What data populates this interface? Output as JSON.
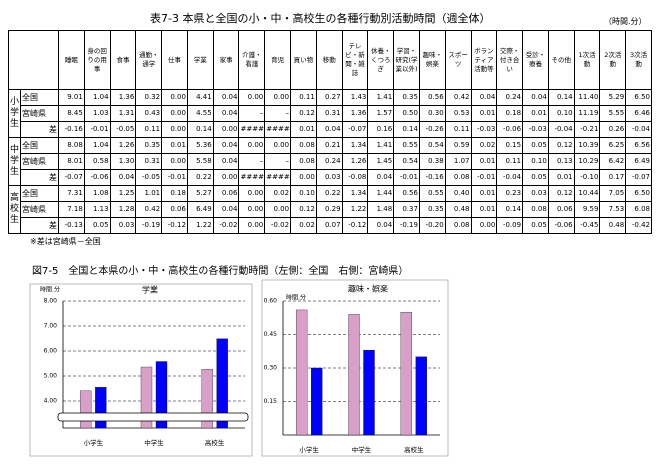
{
  "table": {
    "title": "表7-3 本県と全国の小・中・高校生の各種行動別活動時間（週全体）",
    "unit": "（時間.分）",
    "columns": [
      "睡眠",
      "身の回りの用事",
      "食事",
      "通勤・通学",
      "仕事",
      "学業",
      "家事",
      "介護・看護",
      "育児",
      "買い物",
      "移動",
      "テレビ・新聞・雑誌",
      "休養・くつろぎ",
      "学習・研究(学業以外)",
      "趣味・娯楽",
      "スポーツ",
      "ボランティア活動等",
      "交際・付き合い",
      "受診・療養",
      "その他",
      "1次活動",
      "2次活動",
      "3次活動"
    ],
    "groups": [
      {
        "label": "小学生",
        "rows": [
          {
            "label": "全国",
            "values": [
              "9.01",
              "1.04",
              "1.36",
              "0.32",
              "0.00",
              "4.41",
              "0.04",
              "0.00",
              "0.00",
              "0.11",
              "0.27",
              "1.43",
              "1.41",
              "0.35",
              "0.56",
              "0.42",
              "0.04",
              "0.24",
              "0.04",
              "0.14",
              "11.40",
              "5.29",
              "6.50"
            ]
          },
          {
            "label": "宮崎県",
            "values": [
              "8.45",
              "1.03",
              "1.31",
              "0.43",
              "0.00",
              "4.55",
              "0.04",
              "–",
              "–",
              "0.12",
              "0.31",
              "1.36",
              "1.57",
              "0.50",
              "0.30",
              "0.53",
              "0.01",
              "0.18",
              "0.01",
              "0.10",
              "11.19",
              "5.55",
              "6.46"
            ]
          },
          {
            "label": "差",
            "values": [
              "-0.16",
              "-0.01",
              "-0.05",
              "0.11",
              "0.00",
              "0.14",
              "0.00",
              "####",
              "####",
              "0.01",
              "0.04",
              "-0.07",
              "0.16",
              "0.14",
              "-0.26",
              "0.11",
              "-0.03",
              "-0.06",
              "-0.03",
              "-0.04",
              "-0.21",
              "0.26",
              "-0.04"
            ]
          }
        ]
      },
      {
        "label": "中学生",
        "rows": [
          {
            "label": "全国",
            "values": [
              "8.08",
              "1.04",
              "1.26",
              "0.35",
              "0.01",
              "5.36",
              "0.04",
              "0.00",
              "0.00",
              "0.08",
              "0.21",
              "1.34",
              "1.41",
              "0.55",
              "0.54",
              "0.59",
              "0.02",
              "0.15",
              "0.05",
              "0.12",
              "10.39",
              "6.25",
              "6.56"
            ]
          },
          {
            "label": "宮崎県",
            "values": [
              "8.01",
              "0.58",
              "1.30",
              "0.31",
              "0.00",
              "5.58",
              "0.04",
              "–",
              "–",
              "0.08",
              "0.24",
              "1.26",
              "1.45",
              "0.54",
              "0.38",
              "1.07",
              "0.01",
              "0.11",
              "0.10",
              "0.13",
              "10.29",
              "6.42",
              "6.49"
            ]
          },
          {
            "label": "差",
            "values": [
              "-0.07",
              "-0.06",
              "0.04",
              "-0.05",
              "-0.01",
              "0.22",
              "0.00",
              "####",
              "####",
              "0.00",
              "0.03",
              "-0.08",
              "0.04",
              "-0.01",
              "-0.16",
              "0.08",
              "-0.01",
              "-0.04",
              "0.05",
              "0.01",
              "-0.10",
              "0.17",
              "-0.07"
            ]
          }
        ]
      },
      {
        "label": "高校生",
        "rows": [
          {
            "label": "全国",
            "values": [
              "7.31",
              "1.08",
              "1.25",
              "1.01",
              "0.18",
              "5.27",
              "0.06",
              "0.00",
              "0.02",
              "0.10",
              "0.22",
              "1.34",
              "1.44",
              "0.56",
              "0.55",
              "0.40",
              "0.01",
              "0.23",
              "0.03",
              "0.12",
              "10.44",
              "7.05",
              "6.50"
            ]
          },
          {
            "label": "宮崎県",
            "values": [
              "7.18",
              "1.13",
              "1.28",
              "0.42",
              "0.06",
              "6.49",
              "0.04",
              "0.00",
              "0.00",
              "0.12",
              "0.29",
              "1.22",
              "1.48",
              "0.37",
              "0.35",
              "0.48",
              "0.01",
              "0.14",
              "0.08",
              "0.06",
              "9.59",
              "7.53",
              "6.08"
            ]
          },
          {
            "label": "差",
            "values": [
              "-0.13",
              "0.05",
              "0.03",
              "-0.19",
              "-0.12",
              "1.22",
              "-0.02",
              "0.00",
              "-0.02",
              "0.02",
              "0.07",
              "-0.12",
              "0.04",
              "-0.19",
              "-0.20",
              "0.08",
              "0.00",
              "-0.09",
              "0.05",
              "-0.06",
              "-0.45",
              "0.48",
              "-0.42"
            ]
          }
        ]
      }
    ],
    "note": "※差は宮崎県－全国"
  },
  "figure_caption": "図7-5　全国と本県の小・中・高校生の各種行動時間（左側：全国　右側：宮崎県）",
  "chart_data": [
    {
      "type": "bar",
      "title": "学業",
      "y_unit": "時間.分",
      "categories": [
        "小学生",
        "中学生",
        "高校生"
      ],
      "series": [
        {
          "color": "#d8a0c8",
          "values": [
            4.41,
            5.36,
            5.27
          ]
        },
        {
          "color": "#0000ff",
          "values": [
            4.55,
            5.58,
            6.49
          ]
        }
      ],
      "ylim": [
        4,
        8
      ],
      "yticks": [
        {
          "value": 4,
          "label": "4.00"
        },
        {
          "value": 5,
          "label": "5.00"
        },
        {
          "value": 6,
          "label": "6.00"
        },
        {
          "value": 7,
          "label": "7.00"
        },
        {
          "value": 8,
          "label": "8.00"
        }
      ],
      "grid": true
    },
    {
      "type": "bar",
      "title": "趣味・娯楽",
      "y_unit": "時間.分",
      "categories": [
        "小学生",
        "中学生",
        "高校生"
      ],
      "series": [
        {
          "color": "#d8a0c8",
          "values": [
            0.56,
            0.54,
            0.55
          ]
        },
        {
          "color": "#0000ff",
          "values": [
            0.3,
            0.38,
            0.35
          ]
        }
      ],
      "ylim": [
        0,
        0.6
      ],
      "yticks": [
        {
          "value": 0.15,
          "label": "0.15"
        },
        {
          "value": 0.3,
          "label": "0.30"
        },
        {
          "value": 0.45,
          "label": "0.45"
        },
        {
          "value": 0.6,
          "label": "0.60"
        }
      ],
      "grid": true
    }
  ]
}
